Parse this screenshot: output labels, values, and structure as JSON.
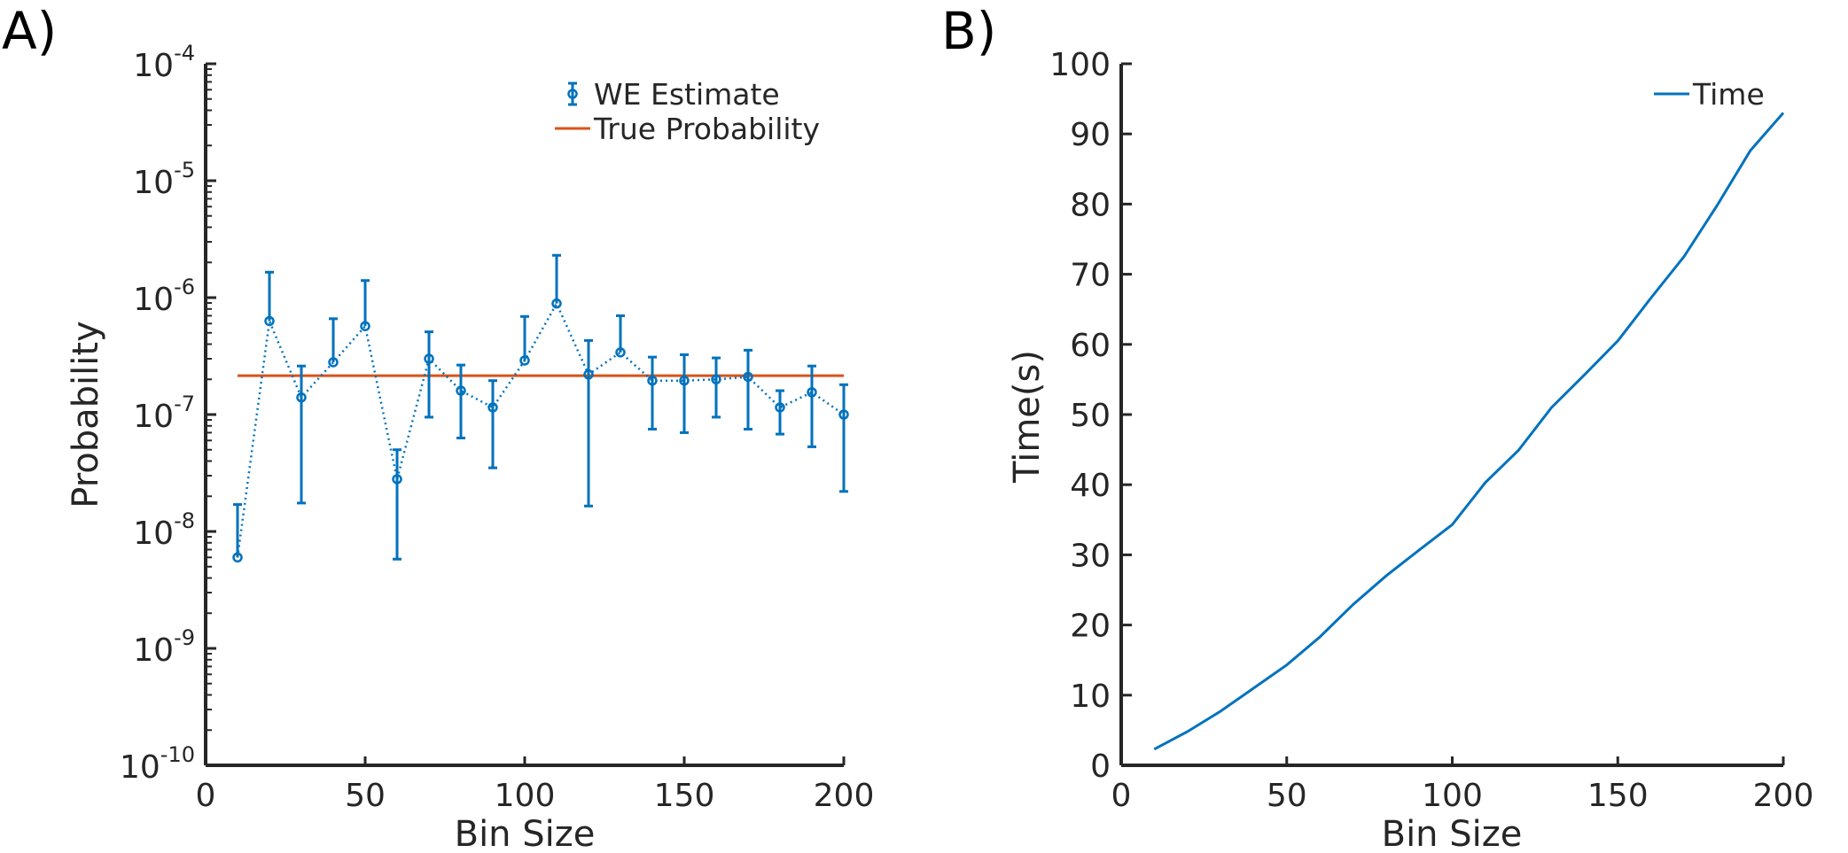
{
  "chart_data": [
    {
      "panel_label": "A)",
      "type": "scatter",
      "xlabel": "Bin Size",
      "ylabel": "Probability",
      "xlim": [
        0,
        200
      ],
      "ylim": [
        1e-10,
        0.0001
      ],
      "yscale": "log",
      "xticks": [
        0,
        50,
        100,
        150,
        200
      ],
      "yticks": [
        {
          "base": "10",
          "exp": "-10",
          "value": -10
        },
        {
          "base": "10",
          "exp": "-9",
          "value": -9
        },
        {
          "base": "10",
          "exp": "-8",
          "value": -8
        },
        {
          "base": "10",
          "exp": "-7",
          "value": -7
        },
        {
          "base": "10",
          "exp": "-6",
          "value": -6
        },
        {
          "base": "10",
          "exp": "-5",
          "value": -5
        },
        {
          "base": "10",
          "exp": "-4",
          "value": -4
        }
      ],
      "legend_position": "top-right",
      "series": [
        {
          "name": "WE Estimate",
          "kind": "errorbar",
          "color": "#0072BD",
          "x": [
            10,
            20,
            30,
            40,
            50,
            60,
            70,
            80,
            90,
            100,
            110,
            120,
            130,
            140,
            150,
            160,
            170,
            180,
            190,
            200
          ],
          "y": [
            6e-09,
            6.3e-07,
            1.4e-07,
            2.8e-07,
            5.7e-07,
            2.8e-08,
            3e-07,
            1.6e-07,
            1.15e-07,
            2.9e-07,
            8.9e-07,
            2.2e-07,
            3.4e-07,
            1.95e-07,
            1.95e-07,
            2e-07,
            2.1e-07,
            1.15e-07,
            1.55e-07,
            1e-07
          ],
          "lower": [
            null,
            null,
            1.75e-08,
            null,
            null,
            5.8e-09,
            9.5e-08,
            6.3e-08,
            3.5e-08,
            null,
            null,
            1.65e-08,
            null,
            7.5e-08,
            7e-08,
            9.5e-08,
            7.5e-08,
            6.8e-08,
            5.3e-08,
            2.2e-08
          ],
          "upper": [
            1.7e-08,
            1.65e-06,
            2.6e-07,
            6.6e-07,
            1.4e-06,
            5e-08,
            5.1e-07,
            2.65e-07,
            1.95e-07,
            6.9e-07,
            2.3e-06,
            4.3e-07,
            7e-07,
            3.1e-07,
            3.25e-07,
            3.05e-07,
            3.55e-07,
            1.6e-07,
            2.6e-07,
            1.8e-07
          ]
        },
        {
          "name": "True Probability",
          "kind": "line",
          "color": "#D95319",
          "x": [
            10,
            200
          ],
          "y": [
            2.15e-07,
            2.15e-07
          ]
        }
      ]
    },
    {
      "panel_label": "B)",
      "type": "line",
      "xlabel": "Bin Size",
      "ylabel": "Time(s)",
      "xlim": [
        0,
        200
      ],
      "ylim": [
        0,
        100
      ],
      "xticks": [
        0,
        50,
        100,
        150,
        200
      ],
      "yticks": [
        0,
        10,
        20,
        30,
        40,
        50,
        60,
        70,
        80,
        90,
        100
      ],
      "legend_position": "top-right",
      "series": [
        {
          "name": "Time",
          "color": "#0072BD",
          "x": [
            10,
            20,
            30,
            40,
            50,
            60,
            70,
            80,
            90,
            100,
            110,
            120,
            130,
            140,
            150,
            160,
            170,
            180,
            190,
            200
          ],
          "y": [
            2.3,
            4.8,
            7.7,
            11.0,
            14.3,
            18.3,
            22.9,
            27.0,
            30.7,
            34.3,
            40.3,
            44.9,
            51.0,
            55.7,
            60.5,
            66.6,
            72.5,
            79.8,
            87.6,
            93.0
          ]
        }
      ]
    }
  ]
}
